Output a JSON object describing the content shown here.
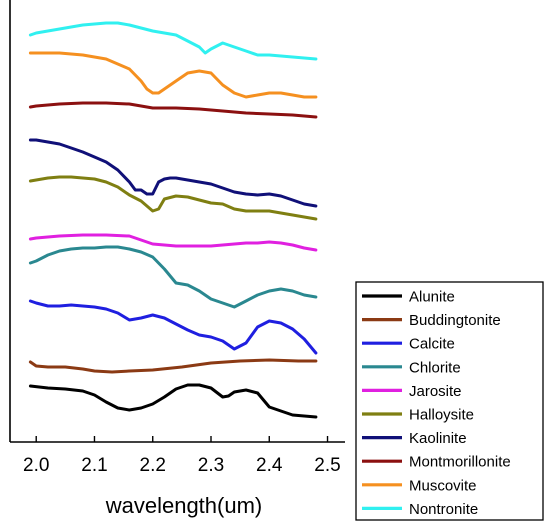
{
  "chart_data": {
    "type": "line",
    "xlabel": "wavelength(um)",
    "ylabel": "",
    "xlim": [
      1.955,
      2.53
    ],
    "xticks": [
      "2.0",
      "2.1",
      "2.2",
      "2.3",
      "2.4",
      "2.5"
    ],
    "grid": false,
    "legend_position": "right",
    "series": [
      {
        "name": "Alunite",
        "color": "#000000",
        "x": [
          1.99,
          2.02,
          2.05,
          2.08,
          2.1,
          2.12,
          2.14,
          2.16,
          2.18,
          2.2,
          2.22,
          2.24,
          2.26,
          2.28,
          2.3,
          2.32,
          2.33,
          2.34,
          2.36,
          2.38,
          2.4,
          2.42,
          2.44,
          2.46,
          2.48
        ],
        "y": [
          0.39,
          0.37,
          0.36,
          0.34,
          0.3,
          0.23,
          0.17,
          0.15,
          0.17,
          0.21,
          0.28,
          0.36,
          0.4,
          0.4,
          0.37,
          0.28,
          0.29,
          0.33,
          0.35,
          0.32,
          0.18,
          0.14,
          0.1,
          0.09,
          0.08
        ]
      },
      {
        "name": "Buddingtonite",
        "color": "#8B3A14",
        "x": [
          1.99,
          2.0,
          2.02,
          2.05,
          2.08,
          2.1,
          2.13,
          2.16,
          2.2,
          2.25,
          2.3,
          2.35,
          2.4,
          2.45,
          2.48
        ],
        "y": [
          0.89,
          0.85,
          0.84,
          0.84,
          0.82,
          0.8,
          0.79,
          0.8,
          0.81,
          0.84,
          0.88,
          0.9,
          0.91,
          0.9,
          0.9
        ]
      },
      {
        "name": "Calcite",
        "color": "#1F1FE0",
        "x": [
          1.99,
          2.0,
          2.02,
          2.04,
          2.06,
          2.08,
          2.1,
          2.12,
          2.14,
          2.16,
          2.18,
          2.2,
          2.22,
          2.24,
          2.26,
          2.28,
          2.3,
          2.32,
          2.34,
          2.36,
          2.38,
          2.4,
          2.42,
          2.44,
          2.46,
          2.48
        ],
        "y": [
          0.72,
          0.7,
          0.67,
          0.67,
          0.68,
          0.67,
          0.66,
          0.64,
          0.6,
          0.53,
          0.55,
          0.58,
          0.55,
          0.49,
          0.43,
          0.38,
          0.36,
          0.32,
          0.24,
          0.3,
          0.46,
          0.52,
          0.5,
          0.44,
          0.34,
          0.2
        ]
      },
      {
        "name": "Chlorite",
        "color": "#2A8890",
        "x": [
          1.99,
          2.0,
          2.02,
          2.04,
          2.06,
          2.08,
          2.1,
          2.12,
          2.14,
          2.16,
          2.18,
          2.2,
          2.22,
          2.24,
          2.26,
          2.28,
          2.3,
          2.32,
          2.34,
          2.36,
          2.38,
          2.4,
          2.42,
          2.44,
          2.46,
          2.48
        ],
        "y": [
          0.32,
          0.34,
          0.4,
          0.44,
          0.46,
          0.47,
          0.47,
          0.48,
          0.48,
          0.46,
          0.43,
          0.38,
          0.26,
          0.12,
          0.1,
          0.04,
          -0.04,
          -0.08,
          -0.12,
          -0.06,
          0.0,
          0.04,
          0.06,
          0.04,
          0.0,
          -0.02
        ]
      },
      {
        "name": "Jarosite",
        "color": "#E020E0",
        "x": [
          1.99,
          2.0,
          2.04,
          2.08,
          2.12,
          2.16,
          2.18,
          2.2,
          2.22,
          2.24,
          2.26,
          2.28,
          2.3,
          2.32,
          2.34,
          2.36,
          2.38,
          2.4,
          2.42,
          2.44,
          2.46,
          2.48
        ],
        "y": [
          0.51,
          0.52,
          0.54,
          0.55,
          0.55,
          0.54,
          0.5,
          0.46,
          0.45,
          0.44,
          0.44,
          0.44,
          0.44,
          0.45,
          0.46,
          0.47,
          0.47,
          0.48,
          0.47,
          0.45,
          0.42,
          0.4
        ]
      },
      {
        "name": "Halloysite",
        "color": "#7F7F12",
        "x": [
          1.99,
          2.0,
          2.02,
          2.04,
          2.06,
          2.08,
          2.1,
          2.12,
          2.14,
          2.16,
          2.18,
          2.2,
          2.21,
          2.22,
          2.24,
          2.26,
          2.28,
          2.3,
          2.32,
          2.34,
          2.36,
          2.38,
          2.4,
          2.42,
          2.44,
          2.46,
          2.48
        ],
        "y": [
          0.38,
          0.39,
          0.41,
          0.42,
          0.42,
          0.41,
          0.4,
          0.37,
          0.32,
          0.24,
          0.18,
          0.08,
          0.1,
          0.2,
          0.23,
          0.22,
          0.19,
          0.16,
          0.15,
          0.1,
          0.08,
          0.08,
          0.08,
          0.06,
          0.04,
          0.02,
          0.0
        ]
      },
      {
        "name": "Kaolinite",
        "color": "#101078",
        "x": [
          1.99,
          2.0,
          2.02,
          2.04,
          2.06,
          2.08,
          2.1,
          2.12,
          2.14,
          2.16,
          2.17,
          2.18,
          2.19,
          2.2,
          2.21,
          2.22,
          2.23,
          2.24,
          2.26,
          2.28,
          2.3,
          2.32,
          2.34,
          2.36,
          2.38,
          2.4,
          2.42,
          2.44,
          2.46,
          2.48
        ],
        "y": [
          0.72,
          0.72,
          0.7,
          0.68,
          0.64,
          0.6,
          0.55,
          0.5,
          0.42,
          0.3,
          0.22,
          0.22,
          0.18,
          0.18,
          0.3,
          0.33,
          0.34,
          0.34,
          0.32,
          0.3,
          0.28,
          0.24,
          0.2,
          0.18,
          0.17,
          0.18,
          0.16,
          0.12,
          0.08,
          0.06
        ]
      },
      {
        "name": "Montmorillonite",
        "color": "#8B1010",
        "x": [
          1.99,
          2.0,
          2.04,
          2.08,
          2.12,
          2.16,
          2.18,
          2.2,
          2.22,
          2.24,
          2.28,
          2.32,
          2.36,
          2.4,
          2.44,
          2.48
        ],
        "y": [
          0.86,
          0.87,
          0.89,
          0.9,
          0.9,
          0.89,
          0.87,
          0.85,
          0.85,
          0.85,
          0.84,
          0.82,
          0.8,
          0.79,
          0.78,
          0.76
        ]
      },
      {
        "name": "Muscovite",
        "color": "#F59020",
        "x": [
          1.99,
          2.0,
          2.04,
          2.08,
          2.12,
          2.16,
          2.18,
          2.19,
          2.2,
          2.21,
          2.22,
          2.24,
          2.26,
          2.28,
          2.3,
          2.32,
          2.34,
          2.36,
          2.38,
          2.4,
          2.42,
          2.44,
          2.46,
          2.48
        ],
        "y": [
          1.02,
          1.02,
          1.02,
          1.0,
          0.96,
          0.86,
          0.74,
          0.66,
          0.62,
          0.62,
          0.66,
          0.74,
          0.82,
          0.84,
          0.82,
          0.7,
          0.62,
          0.58,
          0.6,
          0.62,
          0.62,
          0.6,
          0.58,
          0.58
        ]
      },
      {
        "name": "Nontronite",
        "color": "#30F0F0",
        "x": [
          1.99,
          2.0,
          2.04,
          2.08,
          2.12,
          2.14,
          2.16,
          2.2,
          2.24,
          2.26,
          2.28,
          2.29,
          2.3,
          2.32,
          2.34,
          2.36,
          2.38,
          2.4,
          2.44,
          2.48
        ],
        "y": [
          0.32,
          0.34,
          0.38,
          0.42,
          0.44,
          0.44,
          0.42,
          0.36,
          0.32,
          0.26,
          0.2,
          0.14,
          0.18,
          0.24,
          0.2,
          0.16,
          0.12,
          0.12,
          0.1,
          0.08
        ]
      }
    ]
  }
}
